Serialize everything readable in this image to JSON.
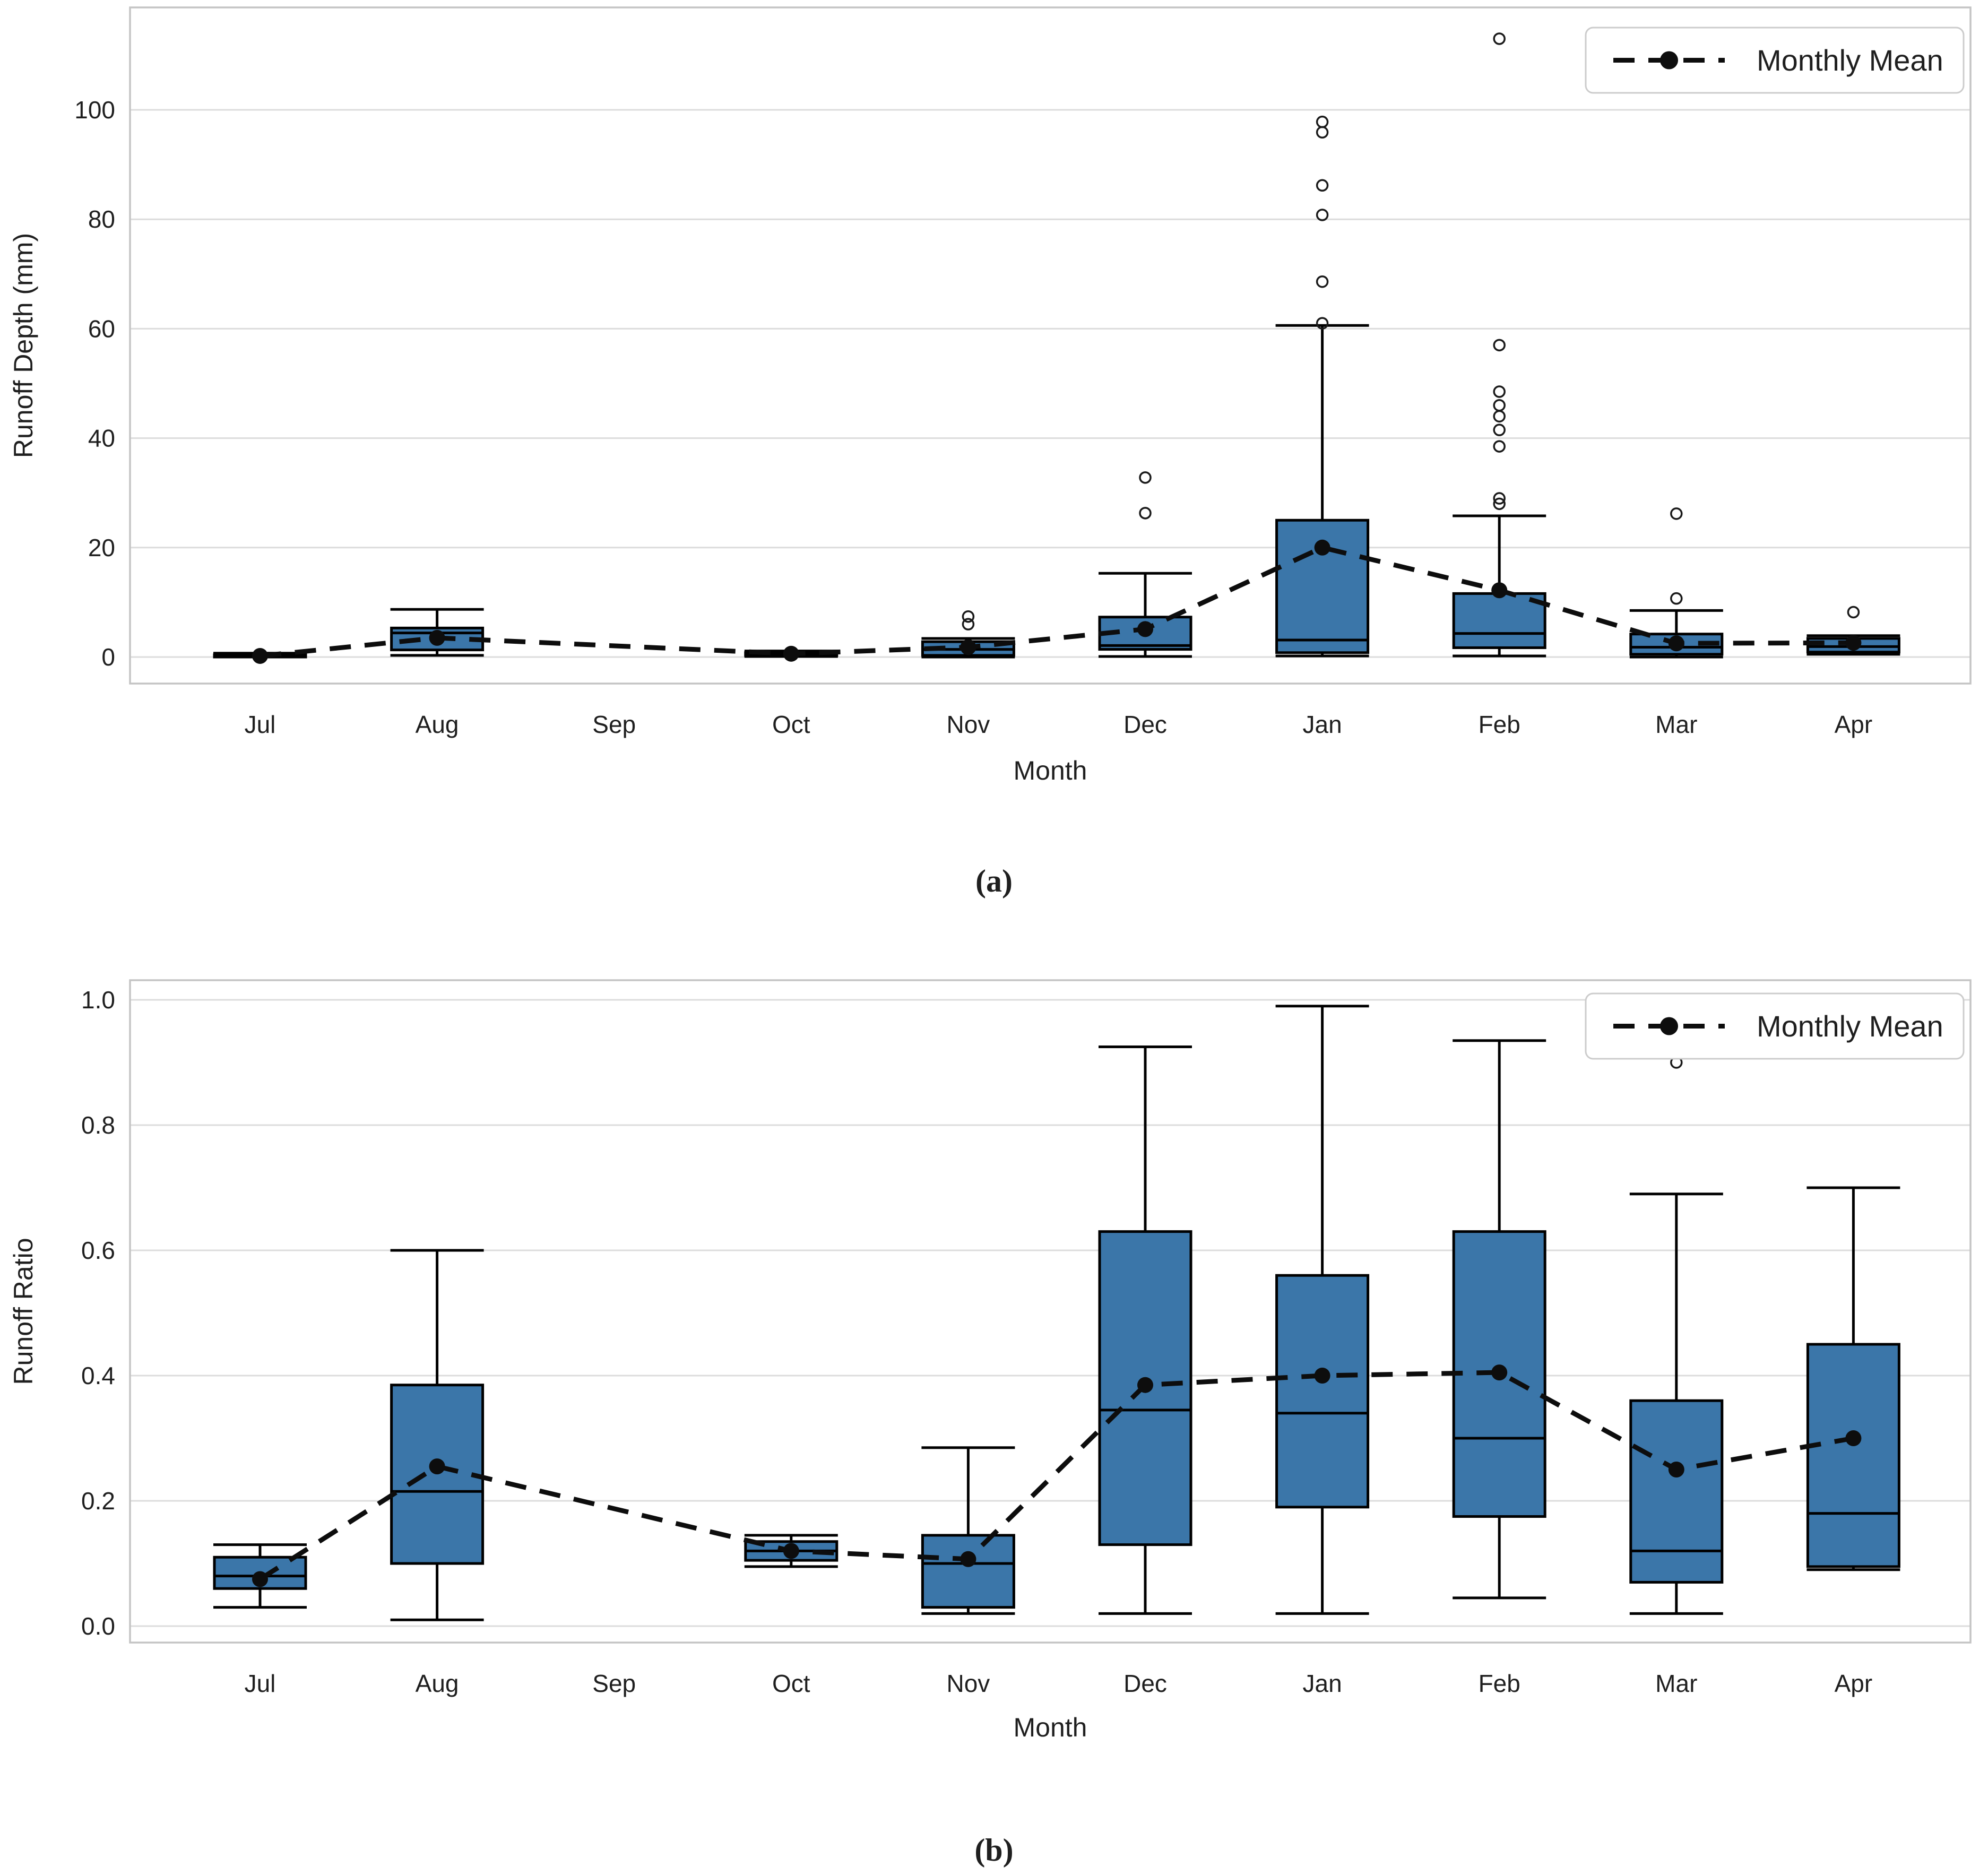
{
  "figure": {
    "captions": [
      "(a)",
      "(b)"
    ]
  },
  "colors": {
    "box_fill": "#3b76a9",
    "box_edge": "#000000",
    "mean_line": "#0d0d0d",
    "grid": "#dcdcdc",
    "frame": "#c4c4c4",
    "text": "#1f1f1f",
    "background": "#ffffff"
  },
  "chart_data": [
    {
      "type": "box",
      "panel": "a",
      "title": "",
      "ylabel": "Runoff Depth (mm)",
      "xlabel": "Month",
      "legend_label": "Monthly Mean",
      "legend_position": "upper right",
      "grid": true,
      "categories": [
        "Jul",
        "Aug",
        "Sep",
        "Oct",
        "Nov",
        "Dec",
        "Jan",
        "Feb",
        "Mar",
        "Apr"
      ],
      "ytick_labels": [
        "0",
        "20",
        "40",
        "60",
        "80",
        "100"
      ],
      "ytick_values": [
        0,
        20,
        40,
        60,
        80,
        100
      ],
      "ylim": [
        -4.9,
        118.8
      ],
      "boxes": [
        {
          "whislo": 0.0,
          "q1": 0.0,
          "med": 0.1,
          "q3": 0.4,
          "whishi": 0.7,
          "outliers": []
        },
        {
          "whislo": 0.3,
          "q1": 1.3,
          "med": 4.4,
          "q3": 5.3,
          "whishi": 8.7,
          "outliers": []
        },
        null,
        {
          "whislo": 0.1,
          "q1": 0.3,
          "med": 0.5,
          "q3": 0.8,
          "whishi": 1.1,
          "outliers": []
        },
        {
          "whislo": 0.0,
          "q1": 0.3,
          "med": 1.4,
          "q3": 2.8,
          "whishi": 3.4,
          "outliers": [
            6.0,
            7.4
          ]
        },
        {
          "whislo": 0.1,
          "q1": 1.4,
          "med": 2.1,
          "q3": 7.3,
          "whishi": 15.3,
          "outliers": [
            26.3,
            32.8
          ]
        },
        {
          "whislo": 0.2,
          "q1": 0.8,
          "med": 3.1,
          "q3": 25.0,
          "whishi": 60.6,
          "outliers": [
            61.0,
            68.6,
            80.8,
            86.2,
            95.9,
            97.8
          ]
        },
        {
          "whislo": 0.2,
          "q1": 1.7,
          "med": 4.3,
          "q3": 11.6,
          "whishi": 25.8,
          "outliers": [
            28.0,
            29.0,
            38.5,
            41.5,
            44.0,
            46.0,
            48.5,
            57.0,
            113.0
          ]
        },
        {
          "whislo": 0.0,
          "q1": 0.5,
          "med": 1.8,
          "q3": 4.2,
          "whishi": 8.5,
          "outliers": [
            10.7,
            26.2
          ]
        },
        {
          "whislo": 0.5,
          "q1": 0.9,
          "med": 1.9,
          "q3": 3.4,
          "whishi": 3.9,
          "outliers": [
            8.2
          ]
        }
      ],
      "means": [
        0.2,
        3.5,
        null,
        0.6,
        1.8,
        5.1,
        20.0,
        12.2,
        2.5,
        2.6
      ]
    },
    {
      "type": "box",
      "panel": "b",
      "title": "",
      "ylabel": "Runoff Ratio",
      "xlabel": "Month",
      "legend_label": "Monthly Mean",
      "legend_position": "upper right",
      "grid": true,
      "categories": [
        "Jul",
        "Aug",
        "Sep",
        "Oct",
        "Nov",
        "Dec",
        "Jan",
        "Feb",
        "Mar",
        "Apr"
      ],
      "ytick_labels": [
        "0.0",
        "0.2",
        "0.4",
        "0.6",
        "0.8",
        "1.0"
      ],
      "ytick_values": [
        0.0,
        0.2,
        0.4,
        0.6,
        0.8,
        1.0
      ],
      "ylim": [
        -0.026,
        1.031
      ],
      "boxes": [
        {
          "whislo": 0.03,
          "q1": 0.06,
          "med": 0.08,
          "q3": 0.11,
          "whishi": 0.13,
          "outliers": []
        },
        {
          "whislo": 0.01,
          "q1": 0.1,
          "med": 0.215,
          "q3": 0.385,
          "whishi": 0.6,
          "outliers": []
        },
        null,
        {
          "whislo": 0.095,
          "q1": 0.105,
          "med": 0.12,
          "q3": 0.135,
          "whishi": 0.145,
          "outliers": []
        },
        {
          "whislo": 0.02,
          "q1": 0.03,
          "med": 0.1,
          "q3": 0.145,
          "whishi": 0.285,
          "outliers": []
        },
        {
          "whislo": 0.02,
          "q1": 0.13,
          "med": 0.345,
          "q3": 0.63,
          "whishi": 0.925,
          "outliers": []
        },
        {
          "whislo": 0.02,
          "q1": 0.19,
          "med": 0.34,
          "q3": 0.56,
          "whishi": 0.99,
          "outliers": []
        },
        {
          "whislo": 0.045,
          "q1": 0.175,
          "med": 0.3,
          "q3": 0.63,
          "whishi": 0.935,
          "outliers": []
        },
        {
          "whislo": 0.02,
          "q1": 0.07,
          "med": 0.12,
          "q3": 0.36,
          "whishi": 0.69,
          "outliers": [
            0.9
          ]
        },
        {
          "whislo": 0.09,
          "q1": 0.095,
          "med": 0.18,
          "q3": 0.45,
          "whishi": 0.7,
          "outliers": []
        }
      ],
      "means": [
        0.075,
        0.255,
        null,
        0.12,
        0.107,
        0.385,
        0.4,
        0.405,
        0.25,
        0.3
      ]
    }
  ]
}
